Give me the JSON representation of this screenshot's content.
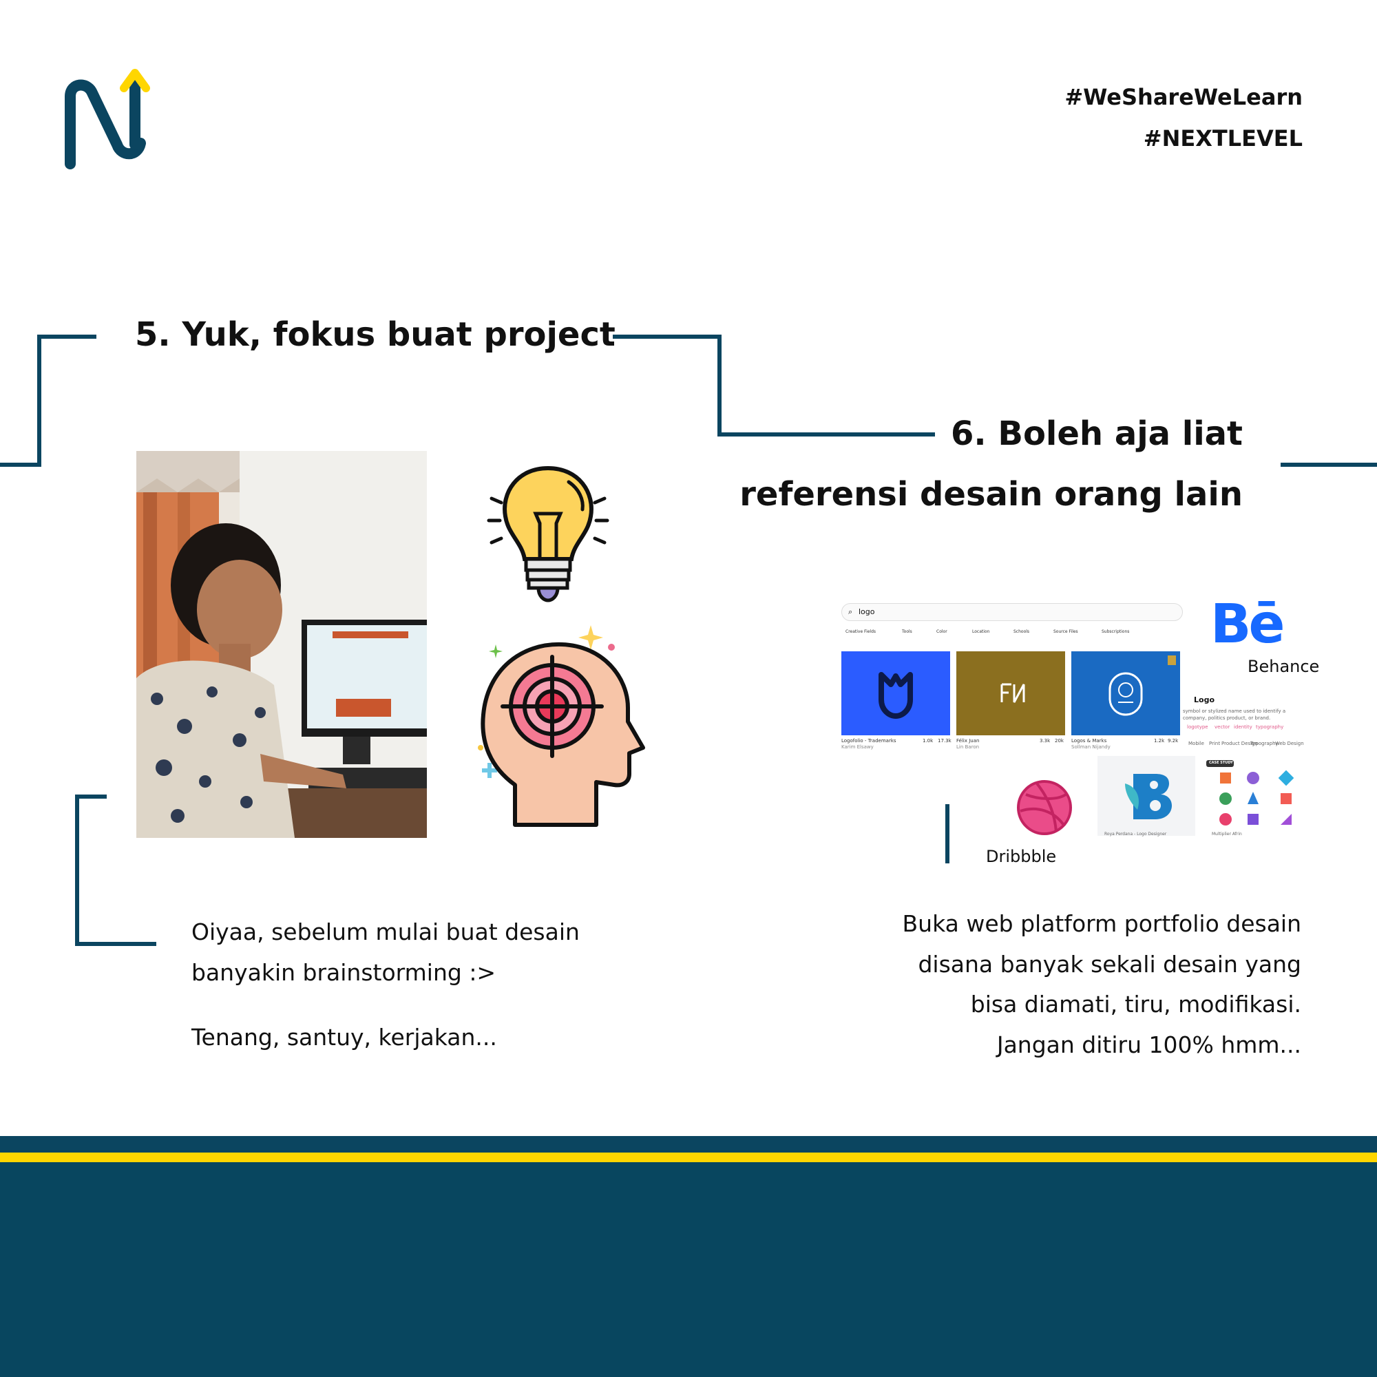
{
  "header": {
    "hashtags": [
      "#WeShareWeLearn",
      "#NEXTLEVEL"
    ]
  },
  "section5": {
    "title": "5. Yuk, fokus buat project",
    "body": [
      "Oiyaa, sebelum mulai buat desain",
      "banyakin brainstorming :>"
    ],
    "note": "Tenang, santuy, kerjakan..."
  },
  "section6": {
    "title_line1": "6. Boleh aja liat",
    "title_line2": "referensi desain orang lain",
    "body": [
      "Buka web platform portfolio desain",
      "disana banyak sekali desain yang",
      "bisa diamati, tiru, modifikasi.",
      "Jangan ditiru 100% hmm..."
    ],
    "platforms": {
      "behance": {
        "label": "Behance",
        "logo_text": "Bē"
      },
      "dribbble": {
        "label": "Dribbble"
      }
    },
    "screenshot": {
      "search_value": "logo",
      "filters": [
        "Creative Fields",
        "Tools",
        "Color",
        "Location",
        "Schools",
        "Source Files",
        "Subscriptions"
      ],
      "tiles": [
        {
          "title": "Logofolio - Trademarks",
          "author": "Karim Elsawy",
          "likes": "1.0k",
          "views": "17.3k"
        },
        {
          "title": "Félix Juan",
          "author": "Lin Baron",
          "likes": "3.3k",
          "views": "20k"
        },
        {
          "title": "Logos & Marks",
          "author": "Sollman Nijandy",
          "likes": "1.2k",
          "views": "9.2k"
        }
      ],
      "panel": {
        "title": "Logo",
        "description": "symbol or stylized name used to identify a company, politics product, or brand.",
        "tags": [
          "logotype",
          "vector",
          "identity",
          "typography"
        ],
        "categories": [
          "Mobile",
          "Print",
          "Product Design",
          "Typography",
          "Web Design"
        ]
      },
      "dribbble_cards": [
        {
          "author": "Roya Perdana - Logo Designer",
          "badge": ""
        },
        {
          "author": "Multiplier Afrin",
          "badge": "CASE STUDY"
        }
      ]
    }
  },
  "colors": {
    "navy": "#0b4560",
    "yellow": "#ffd600",
    "behance_blue": "#1769ff",
    "dribbble_pink": "#ea4c89"
  }
}
